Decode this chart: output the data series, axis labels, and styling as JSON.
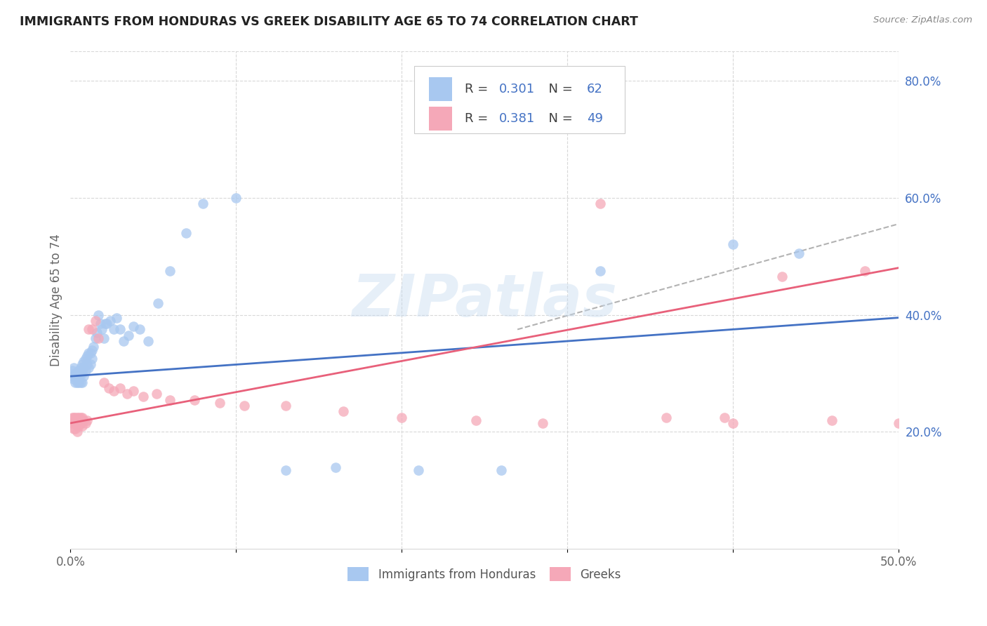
{
  "title": "IMMIGRANTS FROM HONDURAS VS GREEK DISABILITY AGE 65 TO 74 CORRELATION CHART",
  "source": "Source: ZipAtlas.com",
  "ylabel": "Disability Age 65 to 74",
  "xlim": [
    0.0,
    0.5
  ],
  "ylim": [
    0.0,
    0.85
  ],
  "xtick_pos": [
    0.0,
    0.1,
    0.2,
    0.3,
    0.4,
    0.5
  ],
  "xticklabels": [
    "0.0%",
    "",
    "",
    "",
    "",
    "50.0%"
  ],
  "yticks_right": [
    0.2,
    0.4,
    0.6,
    0.8
  ],
  "ytick_right_labels": [
    "20.0%",
    "40.0%",
    "60.0%",
    "80.0%"
  ],
  "watermark": "ZIPatlas",
  "blue_color": "#A8C8F0",
  "pink_color": "#F5A8B8",
  "blue_line_color": "#4472C4",
  "pink_line_color": "#E8607A",
  "text_blue": "#4472C4",
  "text_dark": "#404040",
  "grid_color": "#D8D8D8",
  "blue_line_x0": 0.0,
  "blue_line_y0": 0.295,
  "blue_line_x1": 0.5,
  "blue_line_y1": 0.395,
  "pink_line_x0": 0.0,
  "pink_line_y0": 0.215,
  "pink_line_x1": 0.5,
  "pink_line_y1": 0.48,
  "dash_line_x0": 0.27,
  "dash_line_y0": 0.375,
  "dash_line_x1": 0.5,
  "dash_line_y1": 0.555,
  "blue_x": [
    0.001,
    0.001,
    0.002,
    0.002,
    0.003,
    0.003,
    0.003,
    0.004,
    0.004,
    0.004,
    0.005,
    0.005,
    0.005,
    0.006,
    0.006,
    0.006,
    0.007,
    0.007,
    0.007,
    0.008,
    0.008,
    0.008,
    0.009,
    0.009,
    0.01,
    0.01,
    0.011,
    0.011,
    0.012,
    0.012,
    0.013,
    0.013,
    0.014,
    0.015,
    0.016,
    0.017,
    0.018,
    0.019,
    0.02,
    0.021,
    0.022,
    0.024,
    0.026,
    0.028,
    0.03,
    0.032,
    0.035,
    0.038,
    0.042,
    0.047,
    0.053,
    0.06,
    0.07,
    0.08,
    0.1,
    0.13,
    0.16,
    0.21,
    0.26,
    0.32,
    0.4,
    0.44
  ],
  "blue_y": [
    0.305,
    0.295,
    0.29,
    0.31,
    0.3,
    0.295,
    0.285,
    0.3,
    0.29,
    0.285,
    0.305,
    0.295,
    0.285,
    0.31,
    0.3,
    0.285,
    0.315,
    0.3,
    0.285,
    0.32,
    0.31,
    0.295,
    0.325,
    0.305,
    0.33,
    0.315,
    0.335,
    0.31,
    0.335,
    0.315,
    0.34,
    0.325,
    0.345,
    0.36,
    0.37,
    0.4,
    0.385,
    0.375,
    0.36,
    0.385,
    0.385,
    0.39,
    0.375,
    0.395,
    0.375,
    0.355,
    0.365,
    0.38,
    0.375,
    0.355,
    0.42,
    0.475,
    0.54,
    0.59,
    0.6,
    0.135,
    0.14,
    0.135,
    0.135,
    0.475,
    0.52,
    0.505
  ],
  "pink_x": [
    0.001,
    0.001,
    0.002,
    0.002,
    0.002,
    0.003,
    0.003,
    0.003,
    0.004,
    0.004,
    0.004,
    0.005,
    0.005,
    0.006,
    0.006,
    0.007,
    0.007,
    0.008,
    0.009,
    0.01,
    0.011,
    0.013,
    0.015,
    0.017,
    0.02,
    0.023,
    0.026,
    0.03,
    0.034,
    0.038,
    0.044,
    0.052,
    0.06,
    0.075,
    0.09,
    0.105,
    0.13,
    0.165,
    0.2,
    0.245,
    0.285,
    0.32,
    0.36,
    0.395,
    0.43,
    0.46,
    0.48,
    0.5,
    0.4
  ],
  "pink_y": [
    0.225,
    0.215,
    0.225,
    0.215,
    0.205,
    0.225,
    0.215,
    0.205,
    0.225,
    0.215,
    0.2,
    0.225,
    0.21,
    0.225,
    0.215,
    0.225,
    0.21,
    0.22,
    0.215,
    0.22,
    0.375,
    0.375,
    0.39,
    0.36,
    0.285,
    0.275,
    0.27,
    0.275,
    0.265,
    0.27,
    0.26,
    0.265,
    0.255,
    0.255,
    0.25,
    0.245,
    0.245,
    0.235,
    0.225,
    0.22,
    0.215,
    0.59,
    0.225,
    0.225,
    0.465,
    0.22,
    0.475,
    0.215,
    0.215
  ]
}
